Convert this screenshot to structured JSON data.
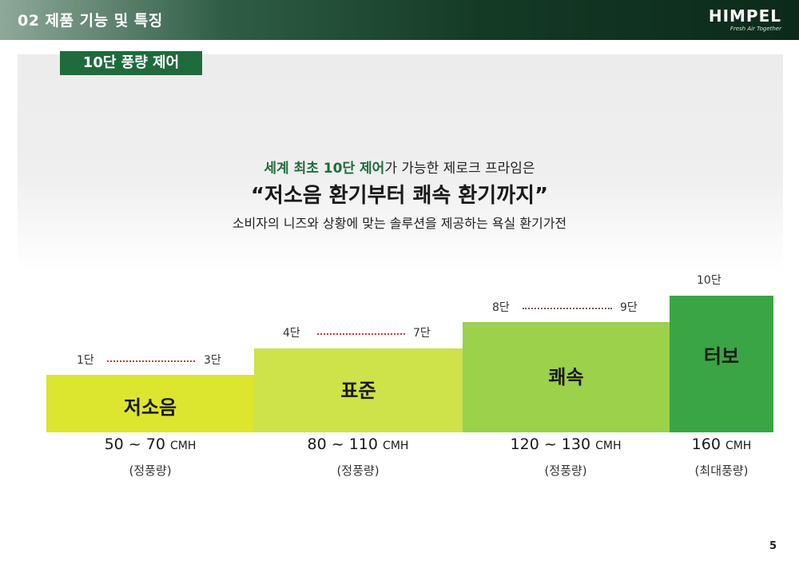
{
  "header": {
    "title": "02 제품 기능 및 특징",
    "logo_text": "HIMPEL",
    "logo_tagline": "Fresh Air Together"
  },
  "section": {
    "tag": "10단 풍량 제어"
  },
  "headline": {
    "line1_highlight": "세계 최초 10단 제어",
    "line1_rest": "가 가능한 제로크 프라임은",
    "line2": "“저소음 환기부터 쾌속 환기까지”",
    "line3": "소비자의 니즈와 상황에 맞는 솔루션을 제공하는 욕실 환기가전"
  },
  "steps": [
    {
      "name": "저소음",
      "from": "1단",
      "to": "3단",
      "range": "50 ~ 70",
      "unit": "CMH",
      "note": "(정풍량)",
      "color": "#dce62f"
    },
    {
      "name": "표준",
      "from": "4단",
      "to": "7단",
      "range": "80 ~ 110",
      "unit": "CMH",
      "note": "(정풍량)",
      "color": "#cee24a"
    },
    {
      "name": "쾌속",
      "from": "8단",
      "to": "9단",
      "range": "120 ~ 130",
      "unit": "CMH",
      "note": "(정풍량)",
      "color": "#9bd14b"
    },
    {
      "name": "터보",
      "from": "10단",
      "to": "",
      "range": "160",
      "unit": "CMH",
      "note": "(최대풍량)",
      "color": "#3aa544"
    }
  ],
  "page_number": "5"
}
